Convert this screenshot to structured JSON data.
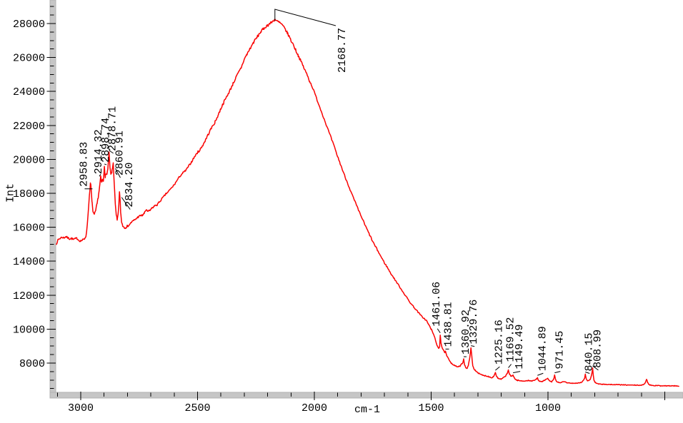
{
  "figure": {
    "background": "#ffffff",
    "trace_color": "#fa0000",
    "axis_bar_color": "#c6c6c6",
    "axis_bar_edge": "#b2b2b2",
    "tick_color": "#000000",
    "text_color": "#000000"
  },
  "chart_data": {
    "type": "line",
    "title": "",
    "xlabel": "cm-1",
    "ylabel": "Int",
    "legend": "none",
    "grid": "off",
    "x_axis": {
      "direction": "decreasing-right",
      "left_value": 3104,
      "right_value": 440,
      "major_ticks_labeled": [
        3000,
        2500,
        2000,
        1500,
        1000
      ],
      "major_ticks_unlabeled": [
        500
      ],
      "minor_tick_step": 100
    },
    "y_axis": {
      "bottom_value": 6300,
      "top_value": 29400,
      "major_ticks": [
        8000,
        10000,
        12000,
        14000,
        16000,
        18000,
        20000,
        22000,
        24000,
        26000,
        28000
      ],
      "minor_tick_step": 500,
      "minor_tick_min": 6500,
      "minor_tick_max": 29000
    },
    "peaks": [
      {
        "label": "2958.83",
        "wavenumber": 2958.83,
        "intensity": 18600
      },
      {
        "label": "2914.32",
        "wavenumber": 2914.32,
        "intensity": 19000
      },
      {
        "label": "2898.74",
        "wavenumber": 2898.74,
        "intensity": 19600
      },
      {
        "label": "2878.71",
        "wavenumber": 2878.71,
        "intensity": 20400
      },
      {
        "label": "2860.91",
        "wavenumber": 2860.91,
        "intensity": 19800
      },
      {
        "label": "2834.20",
        "wavenumber": 2834.2,
        "intensity": 18100
      },
      {
        "label": "2168.77",
        "wavenumber": 2168.77,
        "intensity": 28250
      },
      {
        "label": "1461.06",
        "wavenumber": 1461.06,
        "intensity": 9650
      },
      {
        "label": "1438.81",
        "wavenumber": 1438.81,
        "intensity": 8700
      },
      {
        "label": "1360.92",
        "wavenumber": 1360.92,
        "intensity": 8250
      },
      {
        "label": "1329.76",
        "wavenumber": 1329.76,
        "intensity": 8900
      },
      {
        "label": "1225.16",
        "wavenumber": 1225.16,
        "intensity": 7450
      },
      {
        "label": "1169.52",
        "wavenumber": 1169.52,
        "intensity": 7600
      },
      {
        "label": "1149.49",
        "wavenumber": 1149.49,
        "intensity": 7300
      },
      {
        "label": "1044.89",
        "wavenumber": 1044.89,
        "intensity": 7150
      },
      {
        "label": "971.45",
        "wavenumber": 971.45,
        "intensity": 7300
      },
      {
        "label": "840.15",
        "wavenumber": 840.15,
        "intensity": 7350
      },
      {
        "label": "808.99",
        "wavenumber": 808.99,
        "intensity": 7710
      }
    ],
    "envelope_points": [
      [
        3104,
        15050
      ],
      [
        3096,
        15280
      ],
      [
        3088,
        15350
      ],
      [
        3080,
        15420
      ],
      [
        3072,
        15380
      ],
      [
        3064,
        15450
      ],
      [
        3056,
        15380
      ],
      [
        3048,
        15320
      ],
      [
        3040,
        15350
      ],
      [
        3032,
        15280
      ],
      [
        3024,
        15320
      ],
      [
        3016,
        15350
      ],
      [
        3008,
        15230
      ],
      [
        3000,
        15200
      ],
      [
        2992,
        15250
      ],
      [
        2984,
        15320
      ],
      [
        2978,
        15500
      ],
      [
        2972,
        16100
      ],
      [
        2966,
        17300
      ],
      [
        2961,
        18200
      ],
      [
        2958.8,
        18600
      ],
      [
        2956,
        18350
      ],
      [
        2952,
        17500
      ],
      [
        2947,
        16900
      ],
      [
        2942,
        16700
      ],
      [
        2937,
        16900
      ],
      [
        2931,
        17300
      ],
      [
        2925,
        17800
      ],
      [
        2919,
        18400
      ],
      [
        2914.3,
        19000
      ],
      [
        2911,
        18600
      ],
      [
        2907,
        18800
      ],
      [
        2903,
        18700
      ],
      [
        2898.7,
        19600
      ],
      [
        2895,
        19000
      ],
      [
        2890,
        19100
      ],
      [
        2884,
        19400
      ],
      [
        2878.7,
        20400
      ],
      [
        2875,
        19500
      ],
      [
        2871,
        19100
      ],
      [
        2866,
        19300
      ],
      [
        2860.9,
        19800
      ],
      [
        2857,
        18700
      ],
      [
        2852,
        17300
      ],
      [
        2848,
        16700
      ],
      [
        2844,
        16400
      ],
      [
        2840,
        16700
      ],
      [
        2837,
        17300
      ],
      [
        2834.2,
        18100
      ],
      [
        2832,
        17700
      ],
      [
        2829,
        16900
      ],
      [
        2825,
        16300
      ],
      [
        2820,
        16100
      ],
      [
        2814,
        16000
      ],
      [
        2808,
        16020
      ],
      [
        2800,
        16060
      ],
      [
        2792,
        16150
      ],
      [
        2784,
        16280
      ],
      [
        2775,
        16380
      ],
      [
        2765,
        16480
      ],
      [
        2755,
        16600
      ],
      [
        2745,
        16680
      ],
      [
        2736,
        16700
      ],
      [
        2728,
        16820
      ],
      [
        2719,
        17050
      ],
      [
        2712,
        16930
      ],
      [
        2704,
        16980
      ],
      [
        2695,
        17120
      ],
      [
        2685,
        17250
      ],
      [
        2673,
        17320
      ],
      [
        2660,
        17550
      ],
      [
        2648,
        17750
      ],
      [
        2636,
        17950
      ],
      [
        2624,
        18120
      ],
      [
        2612,
        18300
      ],
      [
        2600,
        18500
      ],
      [
        2588,
        18750
      ],
      [
        2576,
        19000
      ],
      [
        2563,
        19200
      ],
      [
        2550,
        19350
      ],
      [
        2538,
        19600
      ],
      [
        2526,
        19850
      ],
      [
        2513,
        20150
      ],
      [
        2500,
        20400
      ],
      [
        2488,
        20600
      ],
      [
        2475,
        20900
      ],
      [
        2462,
        21250
      ],
      [
        2450,
        21600
      ],
      [
        2438,
        21900
      ],
      [
        2425,
        22200
      ],
      [
        2412,
        22600
      ],
      [
        2400,
        23000
      ],
      [
        2388,
        23350
      ],
      [
        2375,
        23700
      ],
      [
        2362,
        24050
      ],
      [
        2350,
        24400
      ],
      [
        2338,
        24750
      ],
      [
        2325,
        25100
      ],
      [
        2313,
        25400
      ],
      [
        2300,
        25900
      ],
      [
        2290,
        26150
      ],
      [
        2280,
        26400
      ],
      [
        2270,
        26650
      ],
      [
        2260,
        26900
      ],
      [
        2250,
        27100
      ],
      [
        2240,
        27300
      ],
      [
        2230,
        27500
      ],
      [
        2220,
        27650
      ],
      [
        2210,
        27800
      ],
      [
        2200,
        27900
      ],
      [
        2190,
        28000
      ],
      [
        2180,
        28100
      ],
      [
        2172,
        28200
      ],
      [
        2168.8,
        28250
      ],
      [
        2162,
        28150
      ],
      [
        2155,
        28100
      ],
      [
        2148,
        28050
      ],
      [
        2140,
        27950
      ],
      [
        2132,
        27800
      ],
      [
        2124,
        27650
      ],
      [
        2116,
        27450
      ],
      [
        2108,
        27250
      ],
      [
        2100,
        27000
      ],
      [
        2090,
        26750
      ],
      [
        2080,
        26450
      ],
      [
        2070,
        26150
      ],
      [
        2060,
        25850
      ],
      [
        2050,
        25550
      ],
      [
        2040,
        25250
      ],
      [
        2030,
        24950
      ],
      [
        2020,
        24600
      ],
      [
        2010,
        24300
      ],
      [
        2000,
        23950
      ],
      [
        1988,
        23500
      ],
      [
        1976,
        23050
      ],
      [
        1964,
        22600
      ],
      [
        1952,
        22150
      ],
      [
        1940,
        21700
      ],
      [
        1928,
        21250
      ],
      [
        1916,
        20800
      ],
      [
        1904,
        20300
      ],
      [
        1892,
        19850
      ],
      [
        1880,
        19400
      ],
      [
        1868,
        18950
      ],
      [
        1856,
        18550
      ],
      [
        1844,
        18100
      ],
      [
        1832,
        17700
      ],
      [
        1820,
        17300
      ],
      [
        1808,
        16900
      ],
      [
        1796,
        16550
      ],
      [
        1784,
        16150
      ],
      [
        1772,
        15800
      ],
      [
        1760,
        15450
      ],
      [
        1748,
        15100
      ],
      [
        1736,
        14800
      ],
      [
        1724,
        14500
      ],
      [
        1712,
        14200
      ],
      [
        1700,
        13900
      ],
      [
        1688,
        13650
      ],
      [
        1676,
        13350
      ],
      [
        1664,
        13100
      ],
      [
        1652,
        12850
      ],
      [
        1640,
        12600
      ],
      [
        1628,
        12350
      ],
      [
        1616,
        12100
      ],
      [
        1604,
        11850
      ],
      [
        1592,
        11600
      ],
      [
        1580,
        11400
      ],
      [
        1568,
        11200
      ],
      [
        1556,
        11000
      ],
      [
        1544,
        10800
      ],
      [
        1532,
        10650
      ],
      [
        1520,
        10500
      ],
      [
        1510,
        10250
      ],
      [
        1500,
        10000
      ],
      [
        1490,
        9700
      ],
      [
        1481,
        9350
      ],
      [
        1474,
        9000
      ],
      [
        1468,
        8850
      ],
      [
        1464,
        8950
      ],
      [
        1461.1,
        9650
      ],
      [
        1458,
        9200
      ],
      [
        1453,
        8900
      ],
      [
        1448,
        8780
      ],
      [
        1443,
        8620
      ],
      [
        1438.8,
        8700
      ],
      [
        1434,
        8450
      ],
      [
        1428,
        8300
      ],
      [
        1421,
        8150
      ],
      [
        1414,
        8000
      ],
      [
        1407,
        7920
      ],
      [
        1399,
        7850
      ],
      [
        1391,
        7800
      ],
      [
        1383,
        7780
      ],
      [
        1376,
        7830
      ],
      [
        1369,
        7950
      ],
      [
        1364,
        8050
      ],
      [
        1360.9,
        8250
      ],
      [
        1357,
        7900
      ],
      [
        1352,
        7750
      ],
      [
        1346,
        7680
      ],
      [
        1341,
        7850
      ],
      [
        1336,
        8200
      ],
      [
        1329.8,
        8900
      ],
      [
        1326,
        8400
      ],
      [
        1322,
        7850
      ],
      [
        1317,
        7650
      ],
      [
        1311,
        7580
      ],
      [
        1304,
        7480
      ],
      [
        1297,
        7400
      ],
      [
        1289,
        7330
      ],
      [
        1281,
        7290
      ],
      [
        1273,
        7260
      ],
      [
        1265,
        7250
      ],
      [
        1257,
        7220
      ],
      [
        1249,
        7180
      ],
      [
        1241,
        7150
      ],
      [
        1234,
        7200
      ],
      [
        1229,
        7300
      ],
      [
        1225.2,
        7450
      ],
      [
        1221,
        7250
      ],
      [
        1215,
        7120
      ],
      [
        1208,
        7060
      ],
      [
        1201,
        7050
      ],
      [
        1194,
        7100
      ],
      [
        1187,
        7180
      ],
      [
        1180,
        7260
      ],
      [
        1174,
        7400
      ],
      [
        1169.5,
        7600
      ],
      [
        1165,
        7350
      ],
      [
        1159,
        7220
      ],
      [
        1154,
        7240
      ],
      [
        1149.5,
        7300
      ],
      [
        1145,
        7150
      ],
      [
        1139,
        7030
      ],
      [
        1132,
        6990
      ],
      [
        1124,
        6970
      ],
      [
        1116,
        6950
      ],
      [
        1108,
        6945
      ],
      [
        1100,
        6950
      ],
      [
        1092,
        6960
      ],
      [
        1084,
        6975
      ],
      [
        1076,
        6960
      ],
      [
        1068,
        6945
      ],
      [
        1060,
        6980
      ],
      [
        1053,
        7020
      ],
      [
        1048,
        7080
      ],
      [
        1044.9,
        7150
      ],
      [
        1041,
        7000
      ],
      [
        1035,
        6920
      ],
      [
        1028,
        6900
      ],
      [
        1021,
        6940
      ],
      [
        1014,
        6990
      ],
      [
        1007,
        7040
      ],
      [
        1001,
        7090
      ],
      [
        996,
        6990
      ],
      [
        990,
        6920
      ],
      [
        984,
        6900
      ],
      [
        978,
        6990
      ],
      [
        974,
        7120
      ],
      [
        971.5,
        7300
      ],
      [
        968,
        7050
      ],
      [
        963,
        6910
      ],
      [
        957,
        6870
      ],
      [
        950,
        6850
      ],
      [
        943,
        6860
      ],
      [
        936,
        6890
      ],
      [
        929,
        6900
      ],
      [
        922,
        6860
      ],
      [
        915,
        6830
      ],
      [
        908,
        6820
      ],
      [
        901,
        6815
      ],
      [
        894,
        6820
      ],
      [
        887,
        6815
      ],
      [
        880,
        6820
      ],
      [
        873,
        6825
      ],
      [
        866,
        6840
      ],
      [
        859,
        6860
      ],
      [
        853,
        6900
      ],
      [
        848,
        6990
      ],
      [
        843,
        7120
      ],
      [
        840.2,
        7350
      ],
      [
        836,
        7050
      ],
      [
        831,
        6960
      ],
      [
        825,
        6950
      ],
      [
        819,
        7050
      ],
      [
        814,
        7250
      ],
      [
        811,
        7500
      ],
      [
        809,
        7710
      ],
      [
        806,
        7300
      ],
      [
        803,
        7000
      ],
      [
        799,
        6880
      ],
      [
        794,
        6820
      ],
      [
        789,
        6790
      ],
      [
        783,
        6770
      ],
      [
        776,
        6760
      ],
      [
        768,
        6755
      ],
      [
        760,
        6750
      ],
      [
        750,
        6745
      ],
      [
        740,
        6740
      ],
      [
        730,
        6735
      ],
      [
        720,
        6730
      ],
      [
        710,
        6730
      ],
      [
        700,
        6725
      ],
      [
        690,
        6720
      ],
      [
        680,
        6715
      ],
      [
        670,
        6710
      ],
      [
        660,
        6710
      ],
      [
        650,
        6705
      ],
      [
        640,
        6700
      ],
      [
        630,
        6700
      ],
      [
        620,
        6695
      ],
      [
        610,
        6695
      ],
      [
        600,
        6700
      ],
      [
        593,
        6720
      ],
      [
        587,
        6760
      ],
      [
        582,
        6900
      ],
      [
        578,
        7060
      ],
      [
        574,
        6880
      ],
      [
        569,
        6760
      ],
      [
        563,
        6710
      ],
      [
        556,
        6690
      ],
      [
        548,
        6680
      ],
      [
        540,
        6675
      ],
      [
        530,
        6670
      ],
      [
        520,
        6670
      ],
      [
        510,
        6665
      ],
      [
        500,
        6665
      ],
      [
        490,
        6660
      ],
      [
        480,
        6660
      ],
      [
        470,
        6655
      ],
      [
        460,
        6655
      ],
      [
        450,
        6650
      ],
      [
        440,
        6650
      ]
    ]
  }
}
